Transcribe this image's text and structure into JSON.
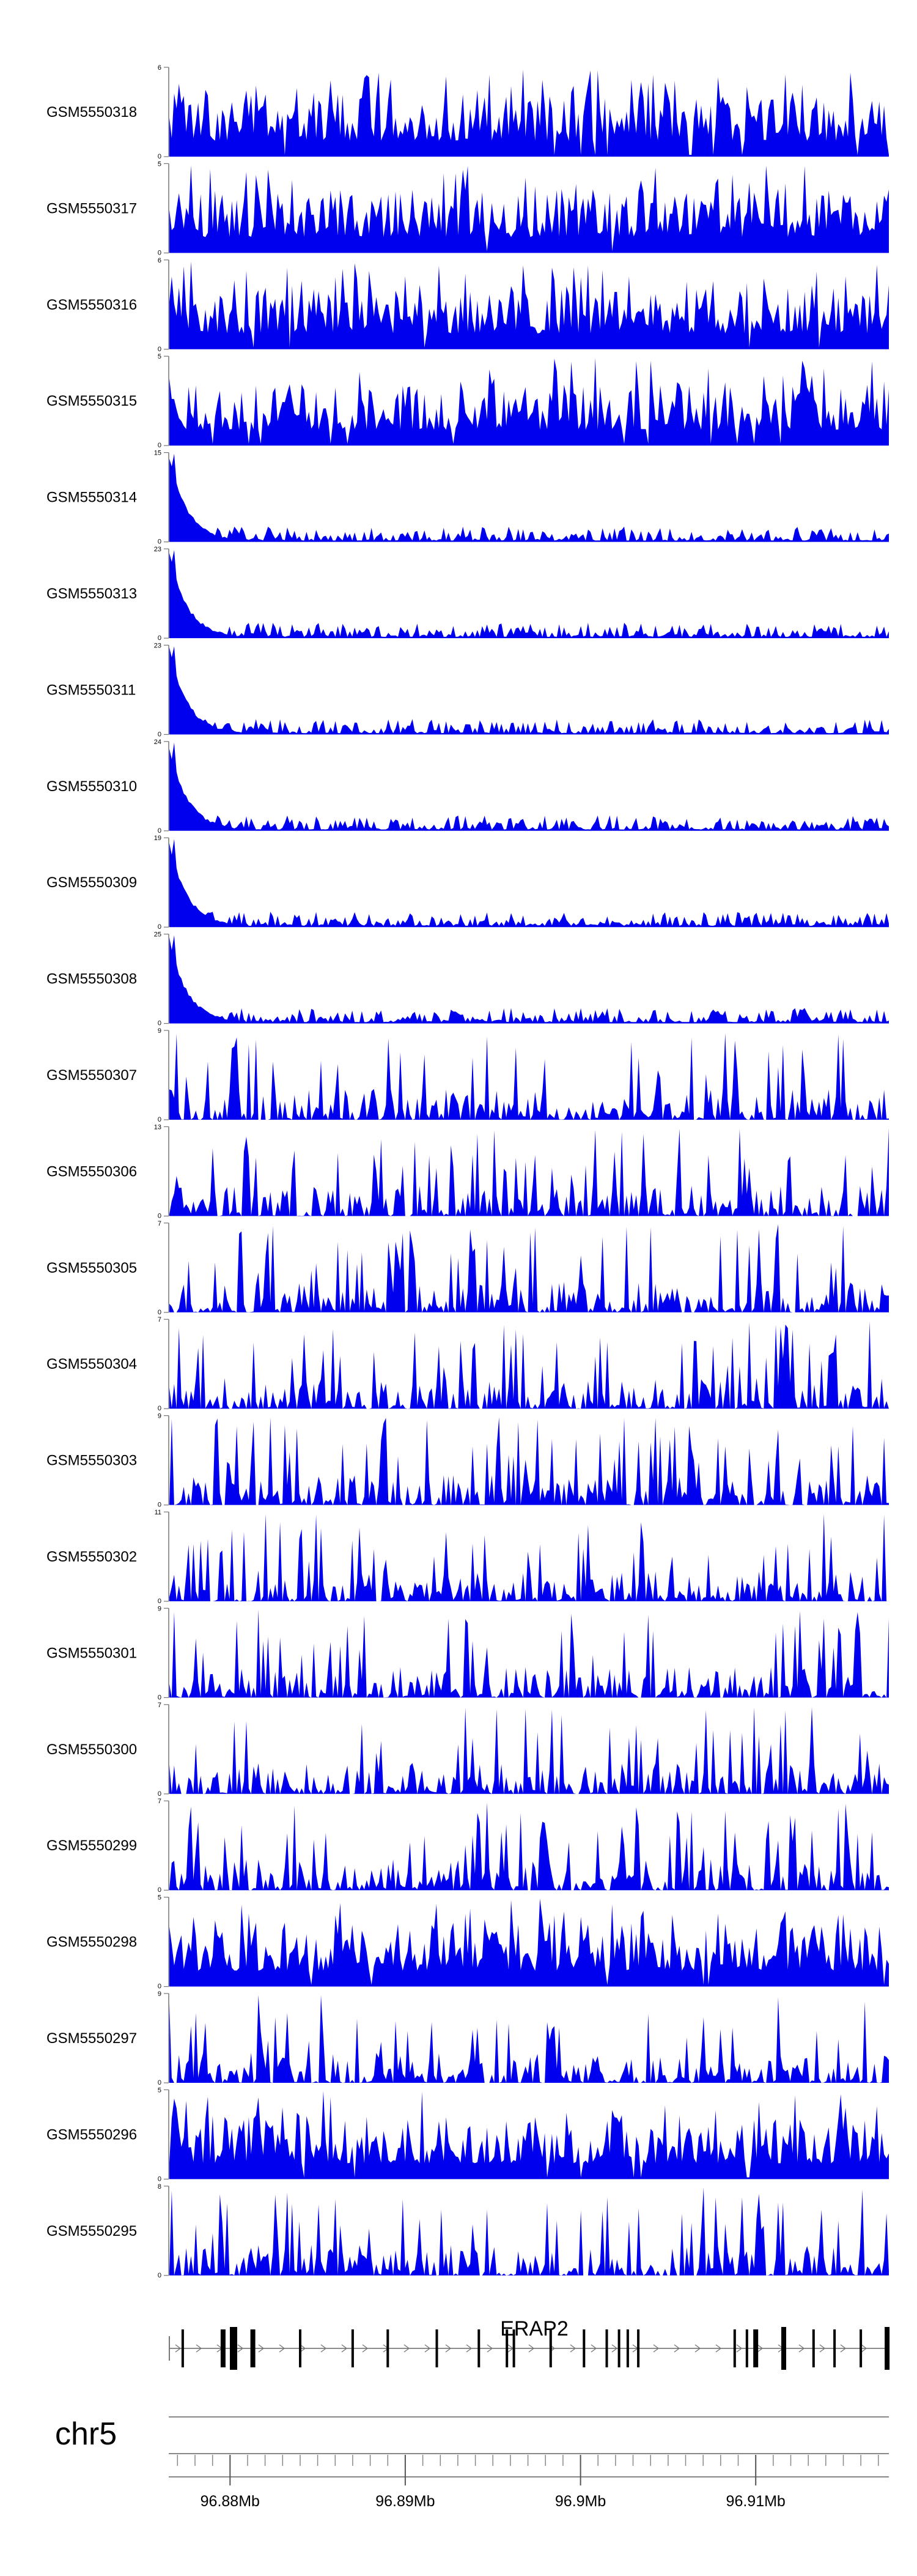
{
  "chart_data": {
    "type": "area",
    "tracks": [
      {
        "name": "GSM5550318",
        "ymax": 6,
        "ymin": 0,
        "profile": "flat"
      },
      {
        "name": "GSM5550317",
        "ymax": 5,
        "ymin": 0,
        "profile": "flat"
      },
      {
        "name": "GSM5550316",
        "ymax": 6,
        "ymin": 0,
        "profile": "flat"
      },
      {
        "name": "GSM5550315",
        "ymax": 5,
        "ymin": 0,
        "profile": "flat"
      },
      {
        "name": "GSM5550314",
        "ymax": 15,
        "ymin": 0,
        "profile": "left-peak"
      },
      {
        "name": "GSM5550313",
        "ymax": 23,
        "ymin": 0,
        "profile": "left-peak"
      },
      {
        "name": "GSM5550311",
        "ymax": 23,
        "ymin": 0,
        "profile": "left-peak"
      },
      {
        "name": "GSM5550310",
        "ymax": 24,
        "ymin": 0,
        "profile": "left-peak"
      },
      {
        "name": "GSM5550309",
        "ymax": 19,
        "ymin": 0,
        "profile": "left-peak"
      },
      {
        "name": "GSM5550308",
        "ymax": 25,
        "ymin": 0,
        "profile": "left-peak"
      },
      {
        "name": "GSM5550307",
        "ymax": 9,
        "ymin": 0,
        "profile": "spiky"
      },
      {
        "name": "GSM5550306",
        "ymax": 13,
        "ymin": 0,
        "profile": "spiky"
      },
      {
        "name": "GSM5550305",
        "ymax": 7,
        "ymin": 0,
        "profile": "spiky"
      },
      {
        "name": "GSM5550304",
        "ymax": 7,
        "ymin": 0,
        "profile": "spiky"
      },
      {
        "name": "GSM5550303",
        "ymax": 9,
        "ymin": 0,
        "profile": "spiky"
      },
      {
        "name": "GSM5550302",
        "ymax": 11,
        "ymin": 0,
        "profile": "spiky"
      },
      {
        "name": "GSM5550301",
        "ymax": 9,
        "ymin": 0,
        "profile": "spiky"
      },
      {
        "name": "GSM5550300",
        "ymax": 7,
        "ymin": 0,
        "profile": "spiky"
      },
      {
        "name": "GSM5550299",
        "ymax": 7,
        "ymin": 0,
        "profile": "spiky"
      },
      {
        "name": "GSM5550298",
        "ymax": 5,
        "ymin": 0,
        "profile": "flat"
      },
      {
        "name": "GSM5550297",
        "ymax": 9,
        "ymin": 0,
        "profile": "spiky"
      },
      {
        "name": "GSM5550296",
        "ymax": 5,
        "ymin": 0,
        "profile": "flat"
      },
      {
        "name": "GSM5550295",
        "ymax": 8,
        "ymin": 0,
        "profile": "spiky"
      }
    ],
    "series_color": "#0000ee",
    "gene": {
      "name": "ERAP2",
      "strand": "+",
      "exons_mb": [
        96.8773,
        96.8796,
        96.8802,
        96.8813,
        96.884,
        96.887,
        96.889,
        96.8918,
        96.8942,
        96.8958,
        96.8962,
        96.8983,
        96.9002,
        96.9015,
        96.9022,
        96.9027,
        96.9033,
        96.9088,
        96.9095,
        96.91,
        96.9116,
        96.9133,
        96.9145,
        96.916,
        96.9175
      ]
    },
    "chromosome": "chr5",
    "xrange_mb": [
      96.8765,
      96.9176
    ],
    "xticks": [
      {
        "value": 96.88,
        "label": "96.88Mb"
      },
      {
        "value": 96.89,
        "label": "96.89Mb"
      },
      {
        "value": 96.9,
        "label": "96.9Mb"
      },
      {
        "value": 96.91,
        "label": "96.91Mb"
      }
    ]
  }
}
